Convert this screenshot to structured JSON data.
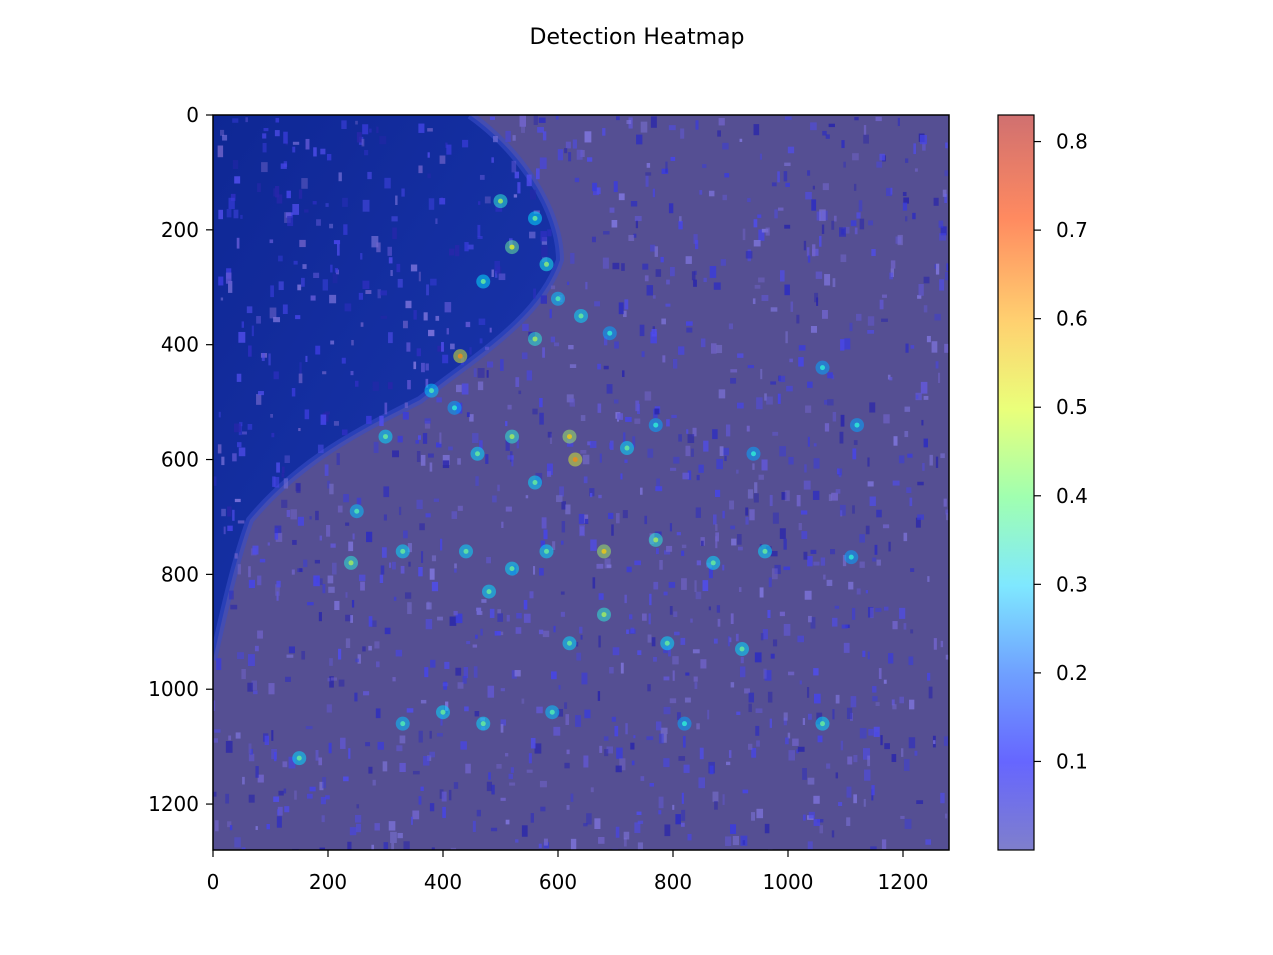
{
  "title": "Detection Heatmap",
  "colors": {
    "water_deep": "#0d2a8c",
    "water_shallow": "#1e3fae",
    "sand": "#5e5686",
    "blue_overlay": "#2a2aff",
    "frame": "#000000"
  },
  "chart_data": {
    "type": "heatmap",
    "title": "Detection Heatmap",
    "xlabel": "",
    "ylabel": "",
    "xlim": [
      0,
      1280
    ],
    "ylim": [
      1280,
      0
    ],
    "xticks": [
      0,
      200,
      400,
      600,
      800,
      1000,
      1200
    ],
    "yticks": [
      0,
      200,
      400,
      600,
      800,
      1000,
      1200
    ],
    "colormap": "jet",
    "colorbar": {
      "range": [
        0,
        0.83
      ],
      "ticks": [
        "0.1",
        "0.2",
        "0.3",
        "0.4",
        "0.5",
        "0.6",
        "0.7",
        "0.8"
      ],
      "tick_values": [
        0.1,
        0.2,
        0.3,
        0.4,
        0.5,
        0.6,
        0.7,
        0.8
      ]
    },
    "background": "beach crowd photograph under heatmap overlay",
    "hotspots": [
      {
        "x": 500,
        "y": 150,
        "v": 0.35
      },
      {
        "x": 560,
        "y": 180,
        "v": 0.3
      },
      {
        "x": 520,
        "y": 230,
        "v": 0.4
      },
      {
        "x": 580,
        "y": 260,
        "v": 0.33
      },
      {
        "x": 470,
        "y": 290,
        "v": 0.3
      },
      {
        "x": 600,
        "y": 320,
        "v": 0.28
      },
      {
        "x": 640,
        "y": 350,
        "v": 0.3
      },
      {
        "x": 560,
        "y": 390,
        "v": 0.35
      },
      {
        "x": 430,
        "y": 420,
        "v": 0.5
      },
      {
        "x": 690,
        "y": 380,
        "v": 0.25
      },
      {
        "x": 380,
        "y": 480,
        "v": 0.28
      },
      {
        "x": 420,
        "y": 510,
        "v": 0.25
      },
      {
        "x": 300,
        "y": 560,
        "v": 0.3
      },
      {
        "x": 520,
        "y": 560,
        "v": 0.35
      },
      {
        "x": 620,
        "y": 560,
        "v": 0.45
      },
      {
        "x": 720,
        "y": 580,
        "v": 0.3
      },
      {
        "x": 770,
        "y": 540,
        "v": 0.25
      },
      {
        "x": 630,
        "y": 600,
        "v": 0.5
      },
      {
        "x": 460,
        "y": 590,
        "v": 0.3
      },
      {
        "x": 560,
        "y": 640,
        "v": 0.3
      },
      {
        "x": 250,
        "y": 690,
        "v": 0.28
      },
      {
        "x": 330,
        "y": 760,
        "v": 0.3
      },
      {
        "x": 240,
        "y": 780,
        "v": 0.35
      },
      {
        "x": 440,
        "y": 760,
        "v": 0.3
      },
      {
        "x": 520,
        "y": 790,
        "v": 0.3
      },
      {
        "x": 580,
        "y": 760,
        "v": 0.3
      },
      {
        "x": 680,
        "y": 760,
        "v": 0.45
      },
      {
        "x": 770,
        "y": 740,
        "v": 0.35
      },
      {
        "x": 870,
        "y": 780,
        "v": 0.3
      },
      {
        "x": 960,
        "y": 760,
        "v": 0.3
      },
      {
        "x": 1110,
        "y": 770,
        "v": 0.25
      },
      {
        "x": 480,
        "y": 830,
        "v": 0.3
      },
      {
        "x": 620,
        "y": 920,
        "v": 0.3
      },
      {
        "x": 680,
        "y": 870,
        "v": 0.35
      },
      {
        "x": 790,
        "y": 920,
        "v": 0.3
      },
      {
        "x": 920,
        "y": 930,
        "v": 0.3
      },
      {
        "x": 400,
        "y": 1040,
        "v": 0.3
      },
      {
        "x": 470,
        "y": 1060,
        "v": 0.3
      },
      {
        "x": 330,
        "y": 1060,
        "v": 0.28
      },
      {
        "x": 590,
        "y": 1040,
        "v": 0.28
      },
      {
        "x": 1060,
        "y": 1060,
        "v": 0.3
      },
      {
        "x": 820,
        "y": 1060,
        "v": 0.25
      },
      {
        "x": 150,
        "y": 1120,
        "v": 0.3
      },
      {
        "x": 940,
        "y": 590,
        "v": 0.25
      },
      {
        "x": 1120,
        "y": 540,
        "v": 0.25
      },
      {
        "x": 1060,
        "y": 440,
        "v": 0.25
      }
    ]
  }
}
